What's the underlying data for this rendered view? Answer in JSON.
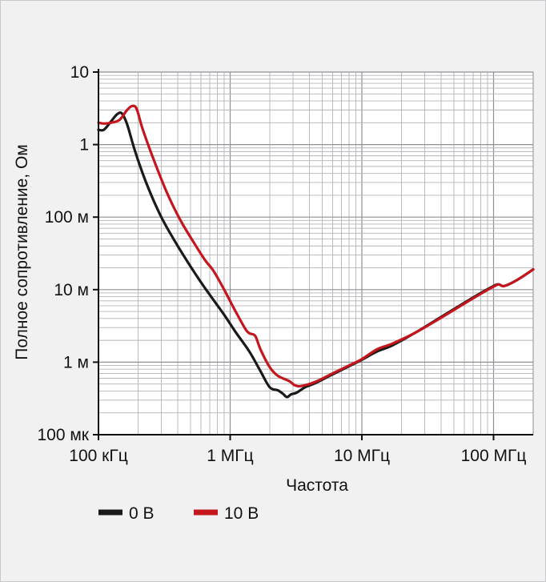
{
  "chart_data": {
    "type": "line",
    "xlabel": "Частота",
    "ylabel": "Полное сопротивление, Ом",
    "x_scale": "log",
    "y_scale": "log",
    "xlim": [
      100000,
      200000000
    ],
    "ylim": [
      0.0001,
      10
    ],
    "grid": true,
    "legend_position": "bottom-left",
    "x_ticks": [
      {
        "value": 100000,
        "label": "100 кГц"
      },
      {
        "value": 1000000,
        "label": "1 МГц"
      },
      {
        "value": 10000000,
        "label": "10 МГц"
      },
      {
        "value": 100000000,
        "label": "100 МГц"
      }
    ],
    "y_ticks": [
      {
        "value": 10,
        "label": "10"
      },
      {
        "value": 1,
        "label": "1"
      },
      {
        "value": 0.1,
        "label": "100 м"
      },
      {
        "value": 0.01,
        "label": "10 м"
      },
      {
        "value": 0.001,
        "label": "1 м"
      },
      {
        "value": 0.0001,
        "label": "100 мк"
      }
    ],
    "series": [
      {
        "name": "0 В",
        "color": "#1a1a1a",
        "points": [
          [
            100000,
            1.6
          ],
          [
            110000,
            1.6
          ],
          [
            125000,
            2.1
          ],
          [
            138000,
            2.6
          ],
          [
            150000,
            2.7
          ],
          [
            165000,
            1.9
          ],
          [
            190000,
            0.8
          ],
          [
            230000,
            0.3
          ],
          [
            300000,
            0.1
          ],
          [
            400000,
            0.04
          ],
          [
            550000,
            0.016
          ],
          [
            700000,
            0.0085
          ],
          [
            900000,
            0.0045
          ],
          [
            1100000,
            0.0026
          ],
          [
            1400000,
            0.0014
          ],
          [
            1700000,
            0.00075
          ],
          [
            2000000,
            0.00045
          ],
          [
            2300000,
            0.00041
          ],
          [
            2500000,
            0.00037
          ],
          [
            2700000,
            0.00033
          ],
          [
            2900000,
            0.00036
          ],
          [
            3200000,
            0.00038
          ],
          [
            3700000,
            0.00045
          ],
          [
            4500000,
            0.00052
          ],
          [
            6000000,
            0.00068
          ],
          [
            8000000,
            0.00088
          ],
          [
            10000000,
            0.00108
          ],
          [
            13000000,
            0.0014
          ],
          [
            17000000,
            0.0017
          ],
          [
            25000000,
            0.0025
          ],
          [
            40000000,
            0.0042
          ],
          [
            70000000,
            0.0078
          ],
          [
            100000000,
            0.0112
          ],
          [
            110000000,
            0.0118
          ],
          [
            120000000,
            0.0112
          ],
          [
            150000000,
            0.0135
          ],
          [
            200000000,
            0.019
          ]
        ]
      },
      {
        "name": "10 В",
        "color": "#c4161c",
        "points": [
          [
            100000,
            2.0
          ],
          [
            110000,
            1.95
          ],
          [
            125000,
            2.0
          ],
          [
            145000,
            2.2
          ],
          [
            165000,
            3.0
          ],
          [
            180000,
            3.4
          ],
          [
            195000,
            3.1
          ],
          [
            215000,
            1.7
          ],
          [
            260000,
            0.65
          ],
          [
            330000,
            0.22
          ],
          [
            420000,
            0.09
          ],
          [
            550000,
            0.04
          ],
          [
            650000,
            0.025
          ],
          [
            750000,
            0.018
          ],
          [
            900000,
            0.01
          ],
          [
            1100000,
            0.005
          ],
          [
            1300000,
            0.0029
          ],
          [
            1400000,
            0.0025
          ],
          [
            1550000,
            0.0023
          ],
          [
            1700000,
            0.0015
          ],
          [
            2000000,
            0.00085
          ],
          [
            2300000,
            0.00065
          ],
          [
            2800000,
            0.00055
          ],
          [
            3100000,
            0.00048
          ],
          [
            3500000,
            0.00047
          ],
          [
            4500000,
            0.00054
          ],
          [
            6000000,
            0.0007
          ],
          [
            8000000,
            0.0009
          ],
          [
            10000000,
            0.0011
          ],
          [
            13000000,
            0.0015
          ],
          [
            17000000,
            0.0018
          ],
          [
            25000000,
            0.0025
          ],
          [
            40000000,
            0.0041
          ],
          [
            70000000,
            0.0076
          ],
          [
            100000000,
            0.011
          ],
          [
            110000000,
            0.0118
          ],
          [
            120000000,
            0.0112
          ],
          [
            150000000,
            0.0135
          ],
          [
            200000000,
            0.019
          ]
        ]
      }
    ]
  }
}
